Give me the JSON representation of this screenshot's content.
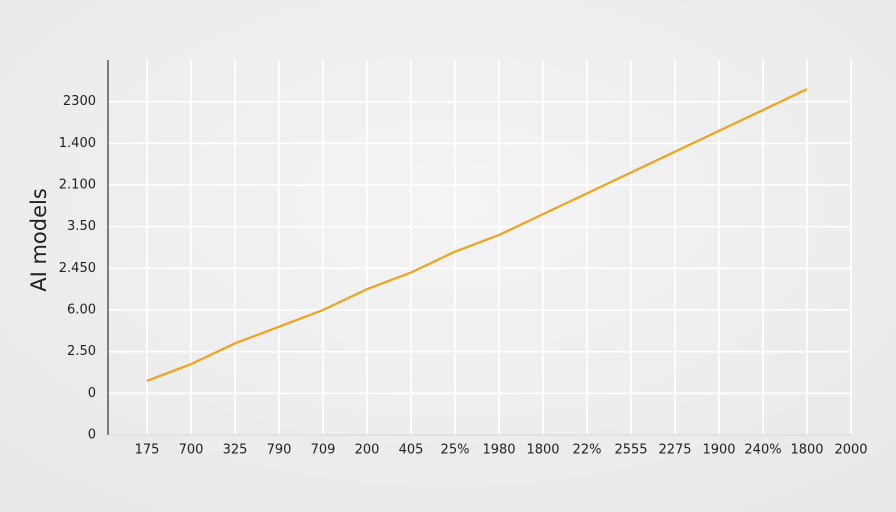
{
  "chart_data": {
    "type": "line",
    "ylabel": "AI models",
    "categories": [
      "175",
      "700",
      "325",
      "790",
      "709",
      "200",
      "405",
      "25%",
      "1980",
      "1800",
      "22%",
      "2555",
      "2275",
      "1900",
      "240%",
      "1800",
      "2000"
    ],
    "series": [
      {
        "name": "AI models",
        "color": "#f0a21e",
        "values": [
          1.3,
          1.7,
          2.2,
          2.6,
          3.0,
          3.5,
          3.9,
          4.4,
          4.8,
          5.3,
          5.8,
          6.3,
          6.8,
          7.3,
          7.8,
          8.3,
          null
        ]
      }
    ],
    "ylim": [
      0,
      9
    ],
    "yticks": [
      0,
      {
        "value": 1,
        "label": "0"
      },
      {
        "value": 2,
        "label": "2.50"
      },
      {
        "value": 3,
        "label": "6.00"
      },
      {
        "value": 4,
        "label": "2.450"
      },
      {
        "value": 5,
        "label": "3.50"
      },
      {
        "value": 6,
        "label": "2.100"
      },
      {
        "value": 7,
        "label": "1.400"
      },
      {
        "value": 8,
        "label": "2300"
      }
    ],
    "grid": true
  }
}
